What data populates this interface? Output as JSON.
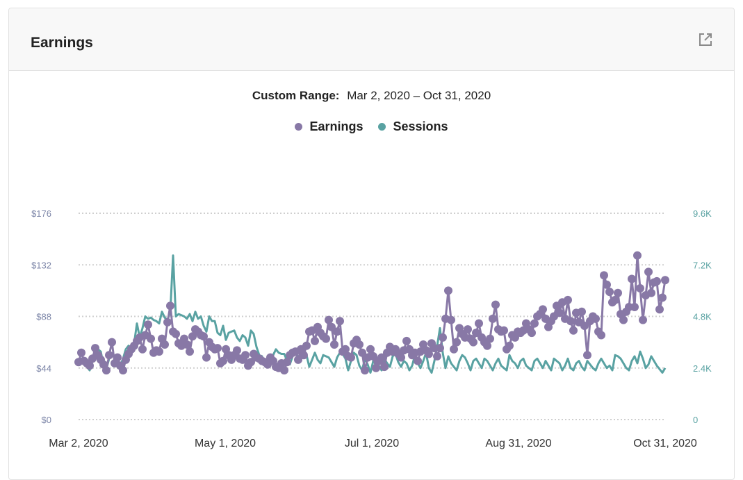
{
  "header": {
    "title": "Earnings",
    "open_icon": "external-link-icon"
  },
  "range": {
    "label": "Custom Range:",
    "value": "Mar 2, 2020 – Oct 31, 2020"
  },
  "colors": {
    "earnings": "#8878a6",
    "sessions": "#59a2a2",
    "grid": "#cfcfcf",
    "left_axis_text": "#7d86a8",
    "right_axis_text": "#59a2a2"
  },
  "chart_data": {
    "type": "line",
    "title": "",
    "x_ticks": [
      "Mar 2, 2020",
      "May 1, 2020",
      "Jul 1, 2020",
      "Aug 31, 2020",
      "Oct 31, 2020"
    ],
    "y_left": {
      "ticks": [
        "$0",
        "$44",
        "$88",
        "$132",
        "$176"
      ],
      "range": [
        0,
        176
      ]
    },
    "y_right": {
      "ticks": [
        "0",
        "2.4K",
        "4.8K",
        "7.2K",
        "9.6K"
      ],
      "range": [
        0,
        9600
      ]
    },
    "legend_position": "top-center",
    "grid": true,
    "x_range": [
      "2020-03-02",
      "2020-10-31"
    ],
    "series": [
      {
        "name": "Earnings",
        "axis": "left",
        "markers": true,
        "values": [
          49,
          57,
          50,
          48,
          46,
          52,
          61,
          55,
          51,
          47,
          42,
          55,
          66,
          48,
          53,
          46,
          42,
          51,
          56,
          60,
          63,
          67,
          70,
          60,
          72,
          81,
          69,
          57,
          59,
          58,
          69,
          64,
          83,
          97,
          75,
          73,
          65,
          63,
          69,
          64,
          58,
          71,
          77,
          75,
          72,
          71,
          53,
          66,
          62,
          60,
          61,
          48,
          50,
          60,
          55,
          51,
          55,
          59,
          52,
          51,
          55,
          46,
          49,
          56,
          53,
          52,
          50,
          49,
          47,
          53,
          50,
          45,
          44,
          48,
          42,
          49,
          55,
          57,
          58,
          51,
          60,
          55,
          63,
          75,
          76,
          67,
          79,
          74,
          71,
          69,
          85,
          79,
          64,
          75,
          84,
          58,
          60,
          54,
          53,
          65,
          68,
          64,
          57,
          42,
          53,
          60,
          54,
          44,
          50,
          53,
          45,
          57,
          62,
          58,
          60,
          56,
          53,
          59,
          67,
          60,
          55,
          57,
          50,
          58,
          64,
          59,
          56,
          65,
          61,
          54,
          61,
          70,
          86,
          110,
          85,
          60,
          66,
          78,
          73,
          70,
          77,
          69,
          66,
          74,
          82,
          70,
          66,
          63,
          69,
          86,
          98,
          77,
          75,
          76,
          60,
          63,
          72,
          70,
          75,
          74,
          76,
          82,
          77,
          74,
          82,
          88,
          90,
          94,
          86,
          79,
          84,
          88,
          97,
          91,
          100,
          86,
          102,
          84,
          76,
          91,
          83,
          92,
          80,
          55,
          84,
          88,
          86,
          75,
          72,
          123,
          115,
          109,
          100,
          102,
          108,
          90,
          85,
          92,
          96,
          120,
          96,
          140,
          112,
          85,
          106,
          126,
          108,
          117,
          118,
          94,
          104,
          119
        ]
      },
      {
        "name": "Sessions",
        "axis": "left",
        "markers": false,
        "values": [
          50,
          52,
          48,
          45,
          42,
          50,
          56,
          60,
          58,
          46,
          43,
          52,
          56,
          54,
          48,
          46,
          52,
          60,
          63,
          61,
          65,
          82,
          70,
          78,
          88,
          86,
          87,
          85,
          84,
          82,
          92,
          87,
          85,
          92,
          140,
          88,
          90,
          89,
          88,
          86,
          90,
          84,
          92,
          86,
          88,
          80,
          75,
          88,
          84,
          84,
          74,
          72,
          80,
          68,
          74,
          75,
          76,
          70,
          67,
          72,
          70,
          63,
          76,
          73,
          62,
          55,
          54,
          48,
          52,
          50,
          55,
          60,
          57,
          56,
          56,
          50,
          47,
          54,
          56,
          54,
          52,
          57,
          55,
          45,
          51,
          57,
          51,
          48,
          55,
          54,
          53,
          49,
          45,
          53,
          57,
          56,
          52,
          42,
          50,
          57,
          55,
          46,
          42,
          52,
          47,
          40,
          50,
          48,
          46,
          42,
          52,
          48,
          45,
          54,
          56,
          49,
          45,
          50,
          48,
          42,
          46,
          55,
          48,
          44,
          50,
          57,
          44,
          40,
          50,
          63,
          78,
          57,
          44,
          54,
          48,
          45,
          42,
          50,
          55,
          53,
          48,
          42,
          50,
          52,
          48,
          44,
          52,
          50,
          46,
          42,
          48,
          52,
          46,
          44,
          42,
          55,
          50,
          48,
          44,
          50,
          52,
          46,
          44,
          42,
          50,
          52,
          48,
          44,
          50,
          46,
          42,
          52,
          50,
          48,
          42,
          46,
          52,
          44,
          42,
          48,
          50,
          45,
          42,
          50,
          47,
          44,
          42,
          48,
          52,
          48,
          44,
          46,
          42,
          55,
          54,
          52,
          48,
          44,
          42,
          50,
          54,
          48,
          58,
          52,
          44,
          47,
          54,
          50,
          46,
          43,
          40,
          44
        ]
      }
    ]
  }
}
